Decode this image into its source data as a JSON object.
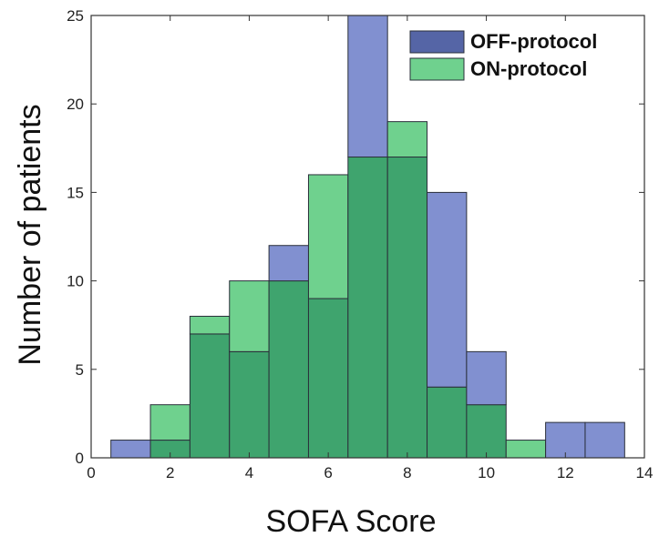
{
  "chart_data": {
    "type": "histogram",
    "xlabel": "SOFA Score",
    "ylabel": "Number of patients",
    "xlim": [
      0,
      14
    ],
    "ylim": [
      0,
      25
    ],
    "xticks": [
      0,
      2,
      4,
      6,
      8,
      10,
      12,
      14
    ],
    "yticks": [
      0,
      5,
      10,
      15,
      20,
      25
    ],
    "bin_width": 1,
    "bin_centers": [
      1,
      2,
      3,
      4,
      5,
      6,
      7,
      8,
      9,
      10,
      11,
      12,
      13
    ],
    "series": [
      {
        "name": "OFF-protocol",
        "color": "#8190d0",
        "values": [
          1,
          1,
          7,
          6,
          12,
          9,
          25,
          17,
          15,
          6,
          0,
          2,
          2
        ]
      },
      {
        "name": "ON-protocol",
        "color": "#6fd18e",
        "values": [
          0,
          3,
          8,
          10,
          10,
          16,
          17,
          19,
          4,
          3,
          1,
          0,
          0
        ]
      }
    ],
    "overlap_color": "#3fa46e",
    "legend_position": "top-right",
    "grid": false
  }
}
